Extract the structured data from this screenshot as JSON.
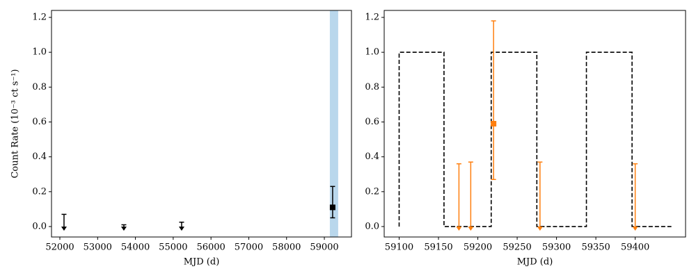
{
  "chart_data": [
    {
      "type": "scatter",
      "xlabel": "MJD (d)",
      "ylabel": "Count Rate (10⁻³ ct s⁻¹)",
      "xlim": [
        51779,
        59718
      ],
      "ylim": [
        -0.06,
        1.24
      ],
      "xticks": [
        52000,
        53000,
        54000,
        55000,
        56000,
        57000,
        58000,
        59000
      ],
      "yticks": [
        {
          "value": 0,
          "label": "0.0"
        },
        0.2,
        0.4,
        0.6,
        0.8,
        {
          "value": 1,
          "label": "1.0"
        },
        1.2
      ],
      "span": {
        "x": [
          59145,
          59366
        ],
        "color": "#b9d7ec"
      },
      "series": [
        {
          "kind": "upper_limit",
          "color": "#000000",
          "x": [
            52110,
            53694,
            55223
          ],
          "values": [
            0.07,
            0.01,
            0.025
          ]
        },
        {
          "kind": "errorbar",
          "color": "#000000",
          "x": [
            59219
          ],
          "values": [
            0.11
          ],
          "error_minus": [
            0.06
          ],
          "error_plus": [
            0.12
          ]
        }
      ]
    },
    {
      "type": "scatter",
      "xlabel": "MJD (d)",
      "xlim": [
        59081,
        59464
      ],
      "ylim": [
        -0.06,
        1.24
      ],
      "xticks": [
        59100,
        59150,
        59200,
        59250,
        59300,
        59350,
        59400
      ],
      "yticks": [
        {
          "value": 0,
          "label": "0.0"
        },
        0.2,
        0.4,
        0.6,
        0.8,
        {
          "value": 1,
          "label": "1.0"
        },
        1.2
      ],
      "series": [
        {
          "kind": "step",
          "color": "#000000",
          "x": [
            59100,
            59100,
            59157,
            59157,
            59217,
            59217,
            59275,
            59275,
            59338,
            59338,
            59396,
            59396,
            59446
          ],
          "values": [
            0,
            1,
            1,
            0,
            0,
            1,
            1,
            0,
            0,
            1,
            1,
            0,
            0
          ]
        },
        {
          "kind": "upper_limit",
          "color": "#ff7f0e",
          "x": [
            59176,
            59191,
            59279,
            59400
          ],
          "values": [
            0.36,
            0.37,
            0.37,
            0.36
          ]
        },
        {
          "kind": "errorbar",
          "color": "#ff7f0e",
          "x": [
            59220
          ],
          "values": [
            0.59
          ],
          "error_minus": [
            0.32
          ],
          "error_plus": [
            0.59
          ]
        }
      ]
    }
  ]
}
